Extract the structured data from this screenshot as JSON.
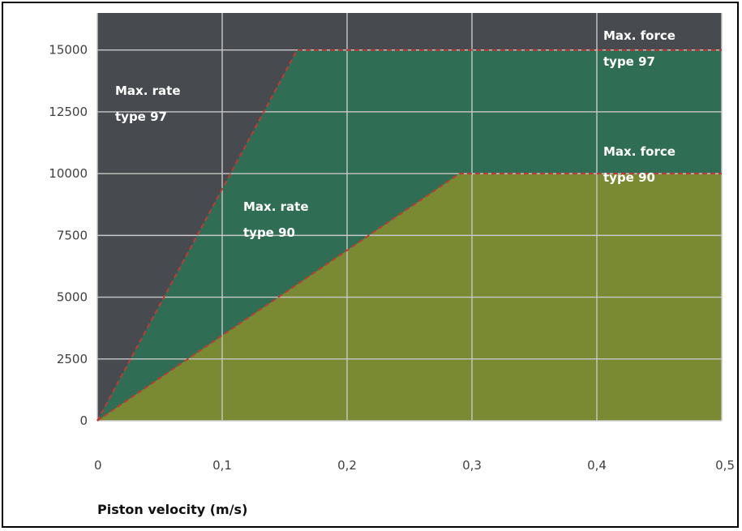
{
  "chart_data": {
    "type": "area",
    "title": "",
    "xlabel": "Piston velocity (m/s)",
    "ylabel": "",
    "xlim": [
      0,
      0.5
    ],
    "ylim": [
      0,
      15000
    ],
    "grid": true,
    "x_ticks": [
      "0",
      "0,1",
      "0,2",
      "0,3",
      "0,4",
      "0,5"
    ],
    "y_ticks": [
      "0",
      "2500",
      "5000",
      "7500",
      "10000",
      "12500",
      "15000"
    ],
    "x_tick_values": [
      0,
      0.1,
      0.2,
      0.3,
      0.4,
      0.5
    ],
    "y_tick_values": [
      0,
      2500,
      5000,
      7500,
      10000,
      12500,
      15000
    ],
    "series": [
      {
        "name": "type 97",
        "x": [
          0,
          0.16,
          0.5
        ],
        "y": [
          0,
          15000,
          15000
        ]
      },
      {
        "name": "type 90",
        "x": [
          0,
          0.29,
          0.5
        ],
        "y": [
          0,
          10000,
          10000
        ]
      }
    ],
    "annotations": [
      {
        "id": "max-rate-97",
        "lines": [
          "Max. rate",
          "type 97"
        ]
      },
      {
        "id": "max-rate-90",
        "lines": [
          "Max. rate",
          "type 90"
        ]
      },
      {
        "id": "max-force-97",
        "lines": [
          "Max. force",
          "type 97"
        ]
      },
      {
        "id": "max-force-90",
        "lines": [
          "Max. force",
          "type 90"
        ]
      }
    ],
    "colors": {
      "background": "#474b50",
      "region_97": "#2f6e55",
      "region_90": "#7a8a32",
      "limit_line": "#c23a33",
      "grid": "#c8c8c8"
    }
  }
}
